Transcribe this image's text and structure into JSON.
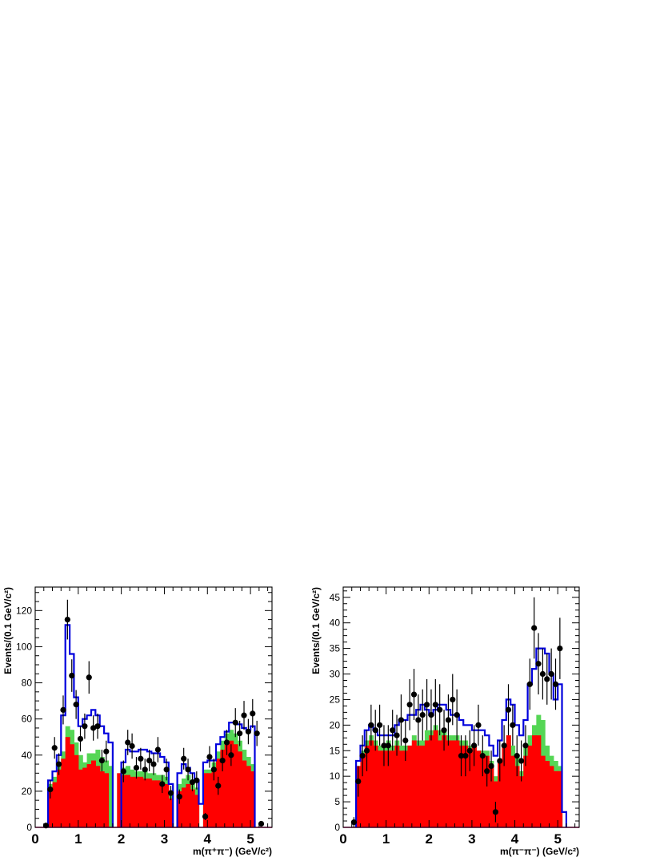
{
  "chart_data": [
    {
      "type": "histogram",
      "xlabel": "m(π⁺π⁻) (GeV/c²)",
      "ylabel": "Events/(0.1 GeV/c²)",
      "xlim": [
        0,
        5.5
      ],
      "ylim": [
        0,
        133
      ],
      "xticks": [
        "0",
        "1",
        "2",
        "3",
        "4",
        "5"
      ],
      "yticks": [
        "0",
        "20",
        "40",
        "60",
        "80",
        "100",
        "120"
      ],
      "bin_width": 0.1,
      "bin_starts": [
        0.3,
        0.4,
        0.5,
        0.6,
        0.7,
        0.8,
        0.9,
        1.0,
        1.1,
        1.2,
        1.3,
        1.4,
        1.5,
        1.6,
        1.7,
        1.8,
        1.9,
        2.0,
        2.1,
        2.2,
        2.3,
        2.4,
        2.5,
        2.6,
        2.7,
        2.8,
        2.9,
        3.0,
        3.1,
        3.2,
        3.3,
        3.4,
        3.5,
        3.6,
        3.7,
        3.8,
        3.9,
        4.0,
        4.1,
        4.2,
        4.3,
        4.4,
        4.5,
        4.6,
        4.7,
        4.8,
        4.9,
        5.0,
        5.1
      ],
      "colors": {
        "red": "#ff0000",
        "green": "#55d655",
        "blue": "#0000dd",
        "data": "#000000",
        "baseline": "#e0007a"
      },
      "series": [
        {
          "values": [
            22,
            25,
            32,
            38,
            50,
            46,
            40,
            32,
            33,
            35,
            37,
            34,
            31,
            30,
            0,
            0,
            30,
            29,
            29,
            28,
            28,
            28,
            27,
            27,
            26,
            26,
            25,
            24,
            16,
            0,
            20,
            22,
            24,
            21,
            18,
            0,
            30,
            30,
            33,
            38,
            43,
            46,
            48,
            46,
            42,
            37,
            34,
            31,
            0
          ]
        },
        {
          "values": [
            24,
            28,
            34,
            42,
            56,
            54,
            47,
            40,
            36,
            41,
            41,
            43,
            39,
            37,
            34,
            0,
            0,
            33,
            34,
            32,
            31,
            31,
            31,
            30,
            30,
            29,
            29,
            28,
            19,
            0,
            24,
            27,
            29,
            26,
            22,
            0,
            32,
            32,
            36,
            42,
            48,
            52,
            54,
            52,
            48,
            43,
            39,
            35,
            0
          ]
        },
        {
          "values": [
            26,
            31,
            40,
            62,
            112,
            96,
            72,
            56,
            60,
            62,
            65,
            62,
            56,
            52,
            47,
            0,
            0,
            36,
            43,
            42,
            42,
            43,
            43,
            42,
            41,
            41,
            39,
            36,
            24,
            0,
            30,
            35,
            33,
            30,
            26,
            13,
            36,
            37,
            37,
            46,
            50,
            53,
            58,
            58,
            57,
            55,
            54,
            56,
            0
          ]
        },
        {
          "x": [
            0.25,
            0.35,
            0.45,
            0.55,
            0.65,
            0.75,
            0.85,
            0.95,
            1.05,
            1.15,
            1.25,
            1.35,
            1.45,
            1.55,
            1.65,
            2.05,
            2.15,
            2.25,
            2.35,
            2.45,
            2.55,
            2.65,
            2.75,
            2.85,
            2.95,
            3.05,
            3.15,
            3.35,
            3.45,
            3.55,
            3.65,
            3.75,
            3.95,
            4.05,
            4.15,
            4.25,
            4.35,
            4.45,
            4.55,
            4.65,
            4.75,
            4.85,
            4.95,
            5.05,
            5.15,
            5.25
          ],
          "y": [
            1,
            21,
            44,
            35,
            65,
            115,
            84,
            68,
            49,
            56,
            83,
            55,
            56,
            37,
            42,
            31,
            47,
            45,
            33,
            38,
            32,
            37,
            35,
            43,
            24,
            32,
            19,
            17,
            38,
            32,
            25,
            26,
            6,
            39,
            32,
            23,
            37,
            47,
            40,
            58,
            52,
            62,
            53,
            63,
            52,
            2
          ],
          "err": [
            1,
            5,
            6,
            6,
            8,
            11,
            9,
            8,
            7,
            7,
            9,
            7,
            7,
            6,
            6,
            6,
            7,
            7,
            6,
            6,
            6,
            6,
            6,
            7,
            5,
            6,
            4,
            4,
            6,
            6,
            5,
            5,
            2,
            6,
            6,
            5,
            6,
            7,
            6,
            8,
            7,
            8,
            7,
            8,
            7,
            1
          ]
        }
      ]
    },
    {
      "type": "histogram",
      "xlabel": "m(π⁻π⁻) (GeV/c²)",
      "ylabel": "Events/(0.1 GeV/c²)",
      "xlim": [
        0,
        5.5
      ],
      "ylim": [
        0,
        47
      ],
      "xticks": [
        "0",
        "1",
        "2",
        "3",
        "4",
        "5"
      ],
      "yticks": [
        "0",
        "5",
        "10",
        "15",
        "20",
        "25",
        "30",
        "35",
        "40",
        "45"
      ],
      "bin_width": 0.1,
      "bin_starts": [
        0.3,
        0.4,
        0.5,
        0.6,
        0.7,
        0.8,
        0.9,
        1.0,
        1.1,
        1.2,
        1.3,
        1.4,
        1.5,
        1.6,
        1.7,
        1.8,
        1.9,
        2.0,
        2.1,
        2.2,
        2.3,
        2.4,
        2.5,
        2.6,
        2.7,
        2.8,
        2.9,
        3.0,
        3.1,
        3.2,
        3.3,
        3.4,
        3.5,
        3.6,
        3.7,
        3.8,
        3.9,
        4.0,
        4.1,
        4.2,
        4.3,
        4.4,
        4.5,
        4.6,
        4.7,
        4.8,
        4.9,
        5.0,
        5.1
      ],
      "colors": {
        "red": "#ff0000",
        "green": "#55d655",
        "blue": "#0000dd",
        "data": "#000000",
        "baseline": "#e0007a"
      },
      "series": [
        {
          "values": [
            12,
            14,
            16,
            17,
            16,
            15,
            15,
            15,
            15,
            16,
            15,
            15,
            16,
            17,
            16,
            16,
            17,
            18,
            19,
            17,
            18,
            17,
            17,
            17,
            16,
            16,
            15,
            16,
            15,
            14,
            14,
            12,
            9,
            13,
            16,
            18,
            14,
            12,
            10,
            14,
            16,
            18,
            18,
            14,
            13,
            12,
            11,
            11,
            0
          ]
        },
        {
          "values": [
            12,
            15,
            17,
            18,
            17,
            16,
            16,
            17,
            16,
            17,
            16,
            16,
            16,
            18,
            17,
            17,
            19,
            19,
            20,
            19,
            19,
            18,
            18,
            18,
            17,
            17,
            16,
            16,
            15,
            15,
            15,
            13,
            10,
            13,
            16,
            18,
            16,
            14,
            11,
            16,
            18,
            20,
            22,
            21,
            16,
            14,
            13,
            12,
            0
          ]
        },
        {
          "values": [
            13,
            16,
            19,
            20,
            19,
            18,
            18,
            18,
            18,
            20,
            21,
            21,
            22,
            22,
            23,
            24,
            23,
            22,
            23,
            24,
            24,
            23,
            22,
            22,
            21,
            20,
            20,
            19,
            19,
            19,
            18,
            16,
            14,
            17,
            21,
            25,
            24,
            20,
            18,
            21,
            28,
            31,
            35,
            35,
            34,
            30,
            25,
            28,
            3
          ]
        },
        {
          "x": [
            0.25,
            0.35,
            0.45,
            0.55,
            0.65,
            0.75,
            0.85,
            0.95,
            1.05,
            1.15,
            1.25,
            1.35,
            1.45,
            1.55,
            1.65,
            1.75,
            1.85,
            1.95,
            2.05,
            2.15,
            2.25,
            2.35,
            2.45,
            2.55,
            2.65,
            2.75,
            2.85,
            2.95,
            3.05,
            3.15,
            3.25,
            3.35,
            3.45,
            3.55,
            3.65,
            3.75,
            3.85,
            3.95,
            4.05,
            4.15,
            4.25,
            4.35,
            4.45,
            4.55,
            4.65,
            4.75,
            4.85,
            4.95,
            5.05
          ],
          "y": [
            1,
            9,
            14,
            15,
            20,
            19,
            20,
            16,
            16,
            19,
            18,
            21,
            17,
            24,
            26,
            21,
            22,
            24,
            22,
            24,
            23,
            19,
            21,
            25,
            22,
            14,
            14,
            15,
            16,
            20,
            14,
            11,
            12,
            3,
            13,
            16,
            23,
            20,
            14,
            13,
            16,
            28,
            39,
            32,
            30,
            29,
            30,
            28,
            35
          ],
          "err": [
            1,
            3,
            4,
            4,
            4,
            4,
            4,
            4,
            4,
            4,
            4,
            5,
            4,
            5,
            5,
            5,
            5,
            5,
            5,
            5,
            5,
            4,
            5,
            5,
            5,
            4,
            4,
            4,
            4,
            4,
            4,
            3,
            3,
            2,
            4,
            4,
            5,
            4,
            4,
            4,
            4,
            5,
            6,
            6,
            5,
            5,
            5,
            5,
            6
          ]
        }
      ]
    }
  ]
}
